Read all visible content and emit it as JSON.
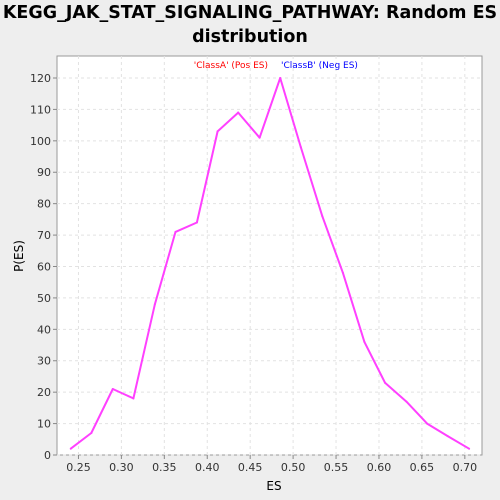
{
  "chart_data": {
    "type": "line",
    "title": "KEGG_JAK_STAT_SIGNALING_PATHWAY: Random ES distribution",
    "xlabel": "ES",
    "ylabel": "P(ES)",
    "xlim": [
      0.225,
      0.72
    ],
    "ylim": [
      0,
      127
    ],
    "x_ticks": [
      "0.25",
      "0.30",
      "0.35",
      "0.40",
      "0.45",
      "0.50",
      "0.55",
      "0.60",
      "0.65",
      "0.70"
    ],
    "y_ticks": [
      "0",
      "10",
      "20",
      "30",
      "40",
      "50",
      "60",
      "70",
      "80",
      "90",
      "100",
      "110",
      "120"
    ],
    "grid": true,
    "legend": {
      "pos_label": "'ClassA' (Pos ES)",
      "neg_label": "'ClassB' (Neg ES)",
      "pos_color": "#ff0000",
      "neg_color": "#0000ff"
    },
    "series": [
      {
        "color": "#ff40ff",
        "x": [
          0.241,
          0.265,
          0.29,
          0.314,
          0.339,
          0.363,
          0.388,
          0.412,
          0.436,
          0.461,
          0.485,
          0.509,
          0.534,
          0.558,
          0.583,
          0.607,
          0.632,
          0.656,
          0.68,
          0.705
        ],
        "y": [
          2,
          7,
          21,
          18,
          48,
          71,
          74,
          103,
          109,
          101,
          120,
          98,
          76,
          58,
          36,
          23,
          17,
          10,
          6,
          2
        ]
      }
    ]
  }
}
